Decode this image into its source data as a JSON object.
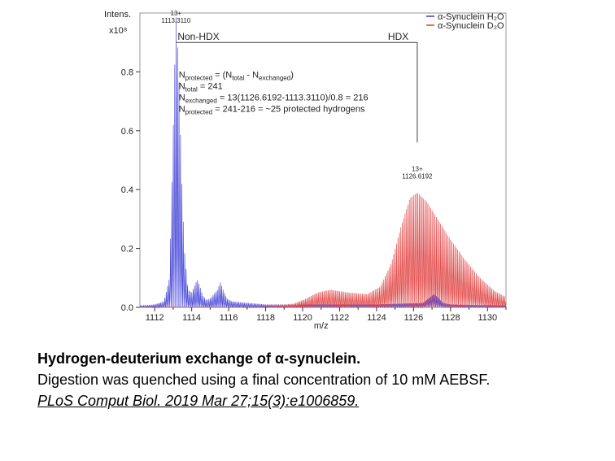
{
  "caption": {
    "title": "Hydrogen-deuterium exchange of α-synuclein.",
    "description": "Digestion was quenched using a final concentration of 10 mM AEBSF.",
    "citation": "PLoS Comput Biol. 2019 Mar 27;15(3):e1006859."
  },
  "colors": {
    "h2o": "#3b3bd6",
    "d2o": "#e03c3c",
    "axis": "#999999",
    "bracket": "#444444"
  },
  "chart_data": {
    "type": "line",
    "x_label": "m/z",
    "y_label": "Intens.",
    "y_unit": "x10⁸",
    "xlim": [
      1111.2,
      1131
    ],
    "ylim": [
      0,
      1.0
    ],
    "x_ticks": [
      1112,
      1114,
      1116,
      1118,
      1120,
      1122,
      1124,
      1126,
      1128,
      1130
    ],
    "y_ticks": [
      0.0,
      0.2,
      0.4,
      0.6,
      0.8
    ],
    "y_tick_labels": [
      "0.0",
      "0.2",
      "0.4",
      "0.6",
      "0.8"
    ],
    "legend_position": "top-right",
    "series": [
      {
        "key": "h2o",
        "name": "α-Synuclein H₂O",
        "color": "#3b3bd6",
        "peak_spacing": 0.0769,
        "envelope": [
          [
            1111.2,
            0.005
          ],
          [
            1112.0,
            0.01
          ],
          [
            1112.5,
            0.02
          ],
          [
            1112.8,
            0.1
          ],
          [
            1113.0,
            0.6
          ],
          [
            1113.15,
            1.0
          ],
          [
            1113.3,
            0.8
          ],
          [
            1113.45,
            0.45
          ],
          [
            1113.6,
            0.2
          ],
          [
            1113.8,
            0.06
          ],
          [
            1114.0,
            0.05
          ],
          [
            1114.2,
            0.08
          ],
          [
            1114.3,
            0.095
          ],
          [
            1114.45,
            0.07
          ],
          [
            1114.6,
            0.04
          ],
          [
            1114.8,
            0.025
          ],
          [
            1115.0,
            0.03
          ],
          [
            1115.4,
            0.06
          ],
          [
            1115.55,
            0.085
          ],
          [
            1115.7,
            0.06
          ],
          [
            1115.9,
            0.03
          ],
          [
            1116.2,
            0.02
          ],
          [
            1117.0,
            0.015
          ],
          [
            1118.0,
            0.01
          ],
          [
            1120.0,
            0.01
          ],
          [
            1124.0,
            0.01
          ],
          [
            1126.5,
            0.015
          ],
          [
            1126.9,
            0.035
          ],
          [
            1127.1,
            0.045
          ],
          [
            1127.3,
            0.035
          ],
          [
            1127.6,
            0.015
          ],
          [
            1128.0,
            0.01
          ],
          [
            1131.0,
            0.005
          ]
        ]
      },
      {
        "key": "d2o",
        "name": "α-Synuclein D₂O",
        "color": "#e03c3c",
        "peak_spacing": 0.0769,
        "envelope": [
          [
            1111.2,
            0.0
          ],
          [
            1117.5,
            0.0
          ],
          [
            1119.5,
            0.012
          ],
          [
            1120.2,
            0.03
          ],
          [
            1120.8,
            0.05
          ],
          [
            1121.5,
            0.06
          ],
          [
            1122.5,
            0.05
          ],
          [
            1123.5,
            0.045
          ],
          [
            1124.2,
            0.07
          ],
          [
            1124.8,
            0.15
          ],
          [
            1125.3,
            0.27
          ],
          [
            1125.8,
            0.37
          ],
          [
            1126.2,
            0.39
          ],
          [
            1126.7,
            0.36
          ],
          [
            1127.3,
            0.3
          ],
          [
            1128.0,
            0.23
          ],
          [
            1128.8,
            0.16
          ],
          [
            1129.6,
            0.1
          ],
          [
            1130.4,
            0.055
          ],
          [
            1131.0,
            0.035
          ]
        ]
      }
    ],
    "annotations": {
      "peak_h2o": {
        "charge": "13+",
        "mz": "1113.3110",
        "x": 1113.15
      },
      "peak_d2o": {
        "charge": "13+",
        "mz": "1126.6192",
        "x": 1126.2
      },
      "non_hdx_label": "Non-HDX",
      "hdx_label": "HDX",
      "bracket": {
        "x_start": 1113.15,
        "x_end": 1126.2,
        "y": 0.9
      },
      "equations": {
        "line1": {
          "main": "N",
          "sub": "protected",
          "rest": " = (N",
          "sub2": "total",
          "rest2": " - N",
          "sub3": "exchanged",
          "rest3": ")"
        },
        "line2": {
          "main": "N",
          "sub": "total",
          "rest": " = 241"
        },
        "line3": {
          "main": "N",
          "sub": "exchanged",
          "rest": " = 13(1126.6192-1113.3110)/0.8 = 216"
        },
        "line4": {
          "main": "N",
          "sub": "protected",
          "rest": " = 241-216 = ~25 protected hydrogens"
        }
      }
    }
  }
}
